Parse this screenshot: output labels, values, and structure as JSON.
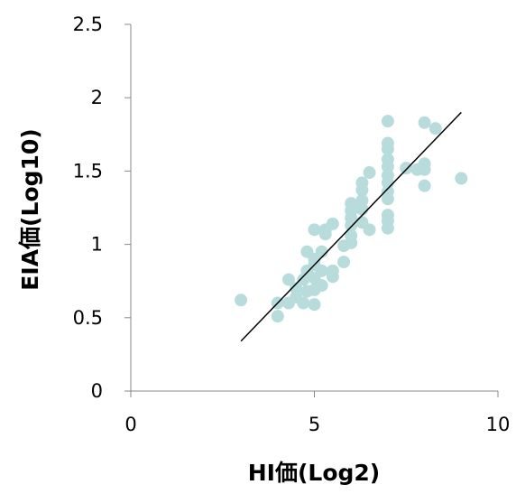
{
  "chart_data": {
    "type": "scatter",
    "title": "",
    "xlabel": "HI価(Log2)",
    "ylabel": "EIA価(Log10)",
    "xlim": [
      0,
      10
    ],
    "ylim": [
      0,
      2.5
    ],
    "x_ticks": [
      "0",
      "5",
      "10"
    ],
    "y_ticks": [
      "0",
      "0.5",
      "1",
      "1.5",
      "2",
      "2.5"
    ],
    "grid": false,
    "legend": "none",
    "marker_color": "#b8dcdc",
    "trendline_color": "#000000",
    "trendline": {
      "x": [
        3,
        9
      ],
      "y": [
        0.34,
        1.9
      ]
    },
    "series": [
      {
        "points": [
          [
            3,
            0.62
          ],
          [
            4,
            0.6
          ],
          [
            4,
            0.51
          ],
          [
            4.3,
            0.76
          ],
          [
            4.3,
            0.6
          ],
          [
            4.5,
            0.64
          ],
          [
            4.5,
            0.7
          ],
          [
            4.7,
            0.6
          ],
          [
            4.7,
            0.76
          ],
          [
            4.8,
            0.82
          ],
          [
            4.8,
            0.95
          ],
          [
            4.8,
            0.68
          ],
          [
            5,
            0.9
          ],
          [
            5,
            0.86
          ],
          [
            5,
            1.1
          ],
          [
            5,
            0.59
          ],
          [
            5,
            0.77
          ],
          [
            5,
            0.69
          ],
          [
            5.2,
            0.72
          ],
          [
            5.2,
            0.82
          ],
          [
            5.2,
            0.95
          ],
          [
            5.3,
            1.07
          ],
          [
            5.3,
            1.1
          ],
          [
            5.5,
            1.14
          ],
          [
            5.5,
            0.82
          ],
          [
            5.5,
            0.78
          ],
          [
            5.8,
            0.88
          ],
          [
            5.8,
            0.99
          ],
          [
            6,
            1.01
          ],
          [
            6,
            1.06
          ],
          [
            6,
            1.13
          ],
          [
            6,
            1.18
          ],
          [
            6,
            1.23
          ],
          [
            6,
            1.28
          ],
          [
            6.3,
            1.42
          ],
          [
            6.3,
            1.37
          ],
          [
            6.3,
            1.3
          ],
          [
            6.3,
            1.24
          ],
          [
            6.3,
            1.15
          ],
          [
            6.5,
            1.1
          ],
          [
            6.5,
            1.49
          ],
          [
            7,
            1.84
          ],
          [
            7,
            1.69
          ],
          [
            7,
            1.65
          ],
          [
            7,
            1.58
          ],
          [
            7,
            1.53
          ],
          [
            7,
            1.47
          ],
          [
            7,
            1.42
          ],
          [
            7,
            1.36
          ],
          [
            7,
            1.31
          ],
          [
            7,
            1.2
          ],
          [
            7,
            1.16
          ],
          [
            7,
            1.11
          ],
          [
            7.5,
            1.52
          ],
          [
            7.8,
            1.51
          ],
          [
            8,
            1.83
          ],
          [
            8,
            1.55
          ],
          [
            8,
            1.51
          ],
          [
            8,
            1.4
          ],
          [
            8.3,
            1.79
          ],
          [
            9,
            1.45
          ]
        ]
      }
    ]
  }
}
